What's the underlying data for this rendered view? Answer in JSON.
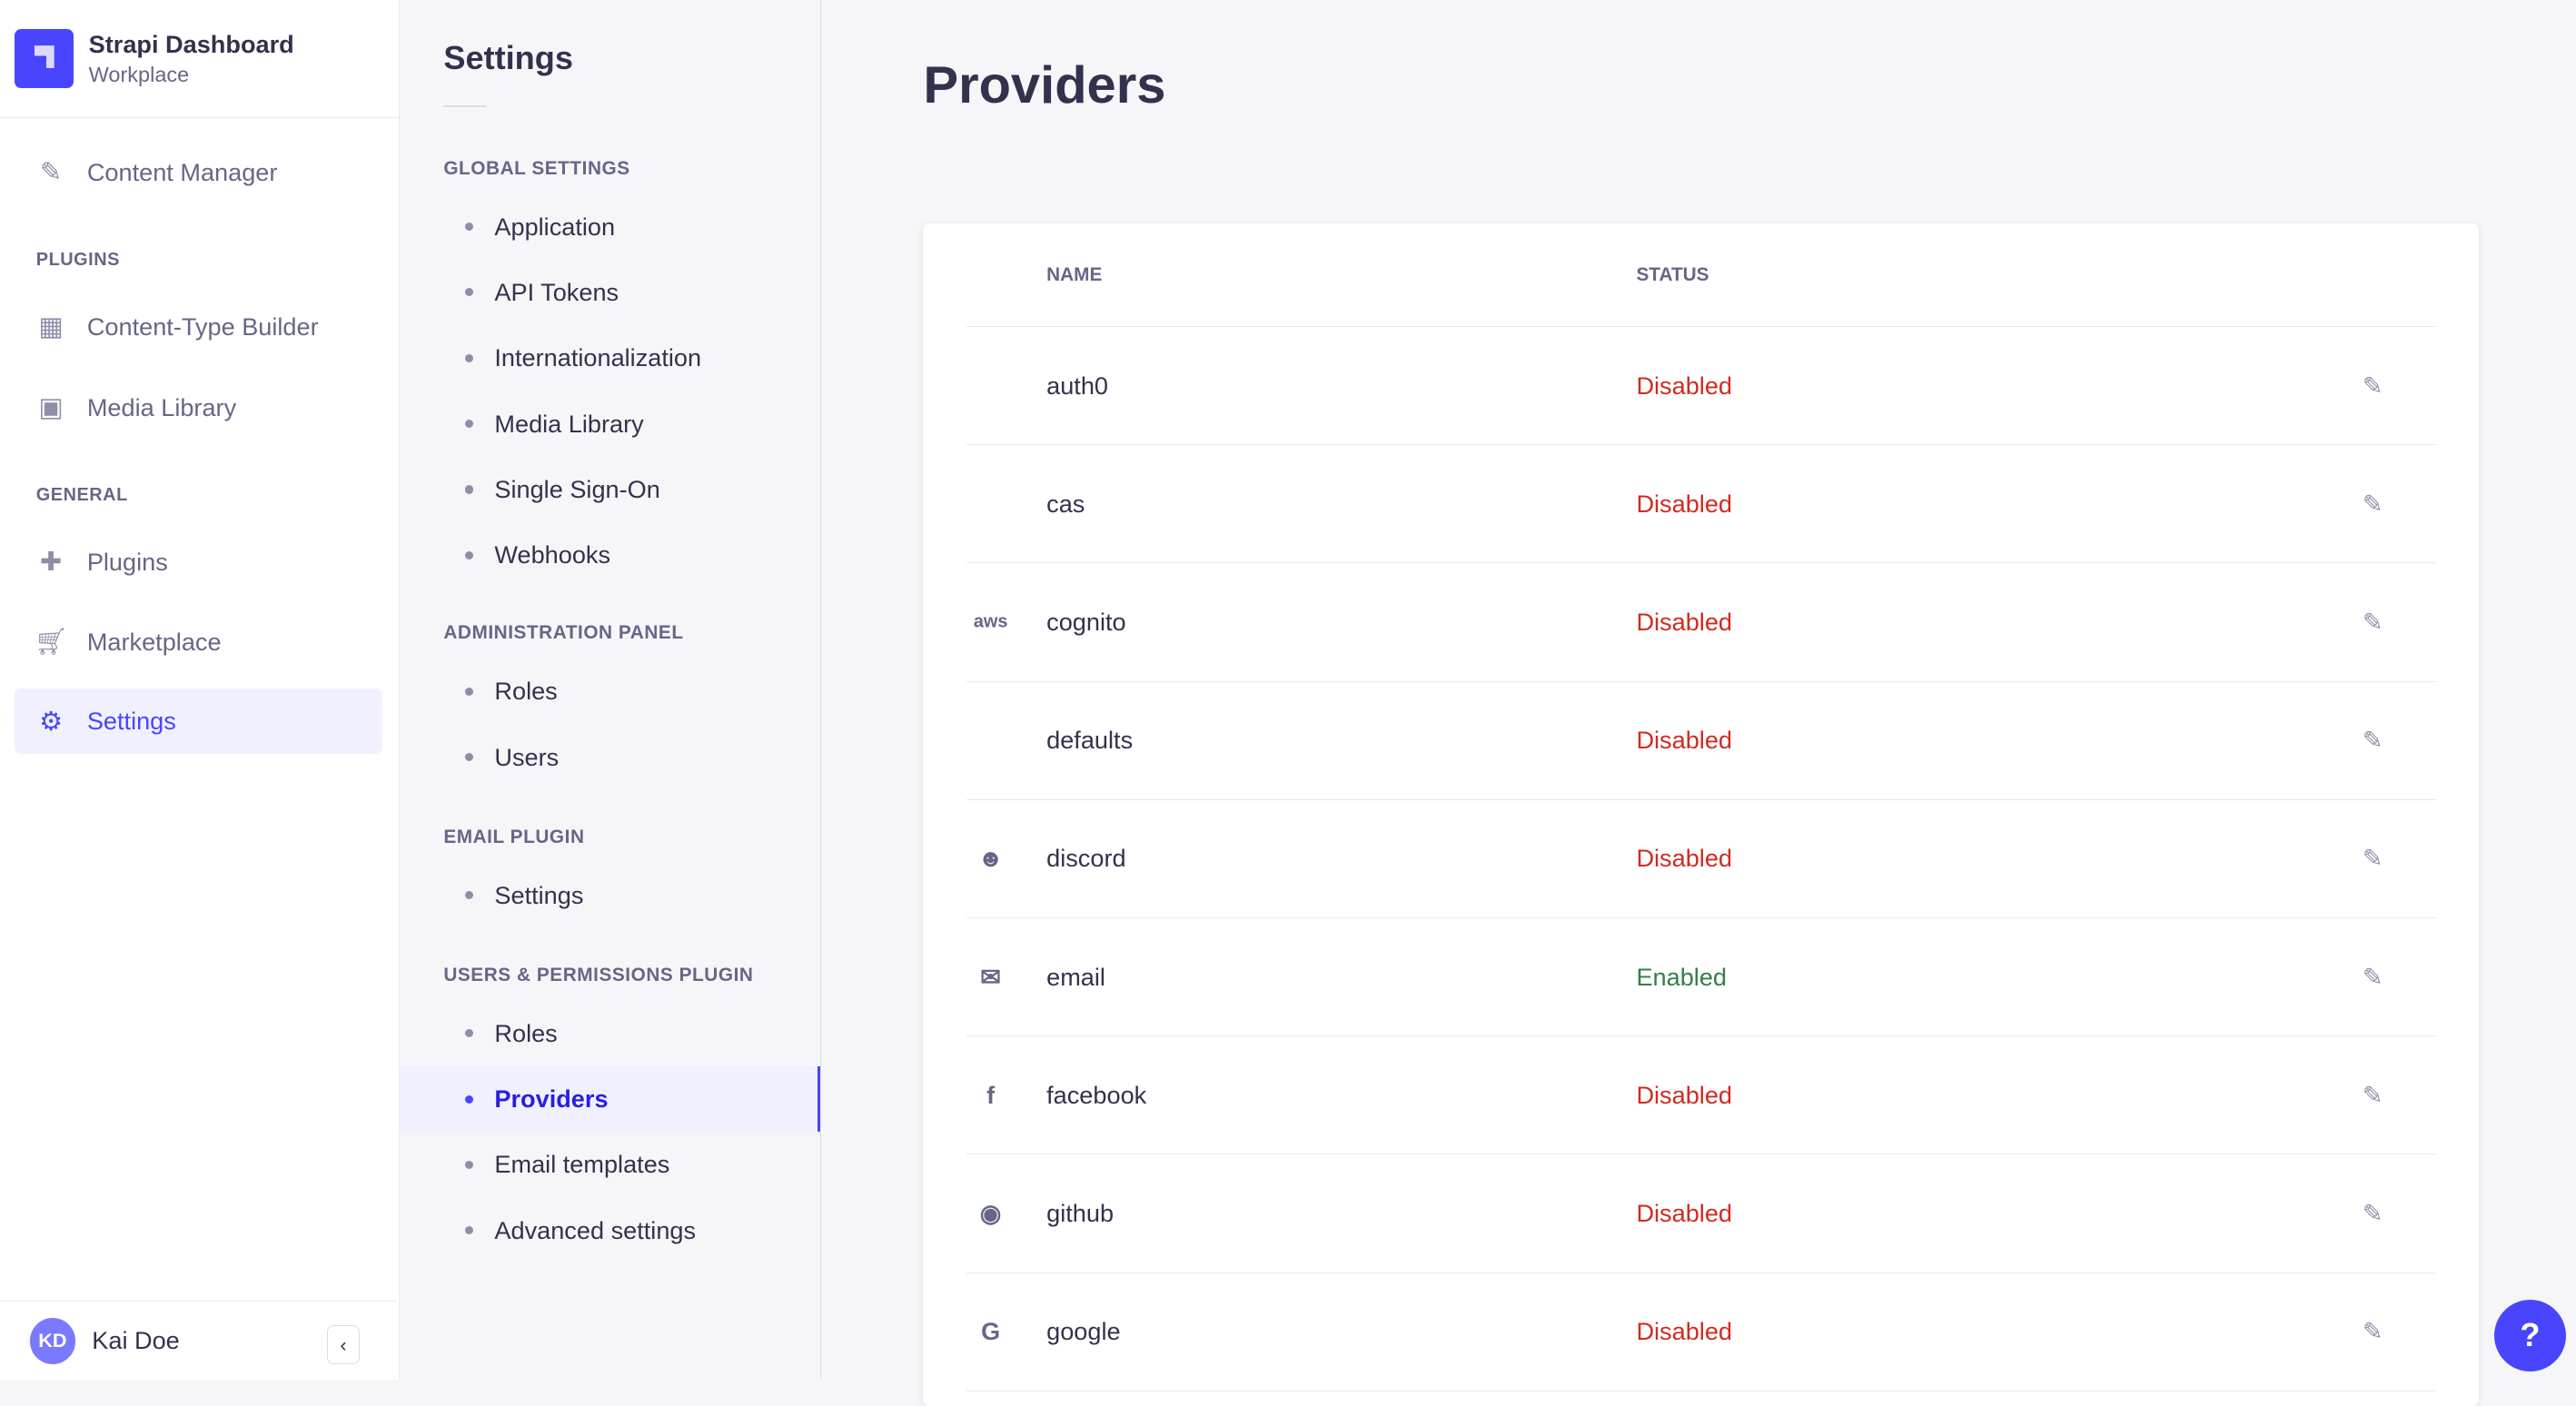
{
  "brand": {
    "title": "Strapi Dashboard",
    "subtitle": "Workplace"
  },
  "nav": {
    "content_manager": "Content Manager",
    "plugins_label": "PLUGINS",
    "ctb": "Content-Type Builder",
    "media": "Media Library",
    "general_label": "GENERAL",
    "plugins": "Plugins",
    "marketplace": "Marketplace",
    "settings": "Settings"
  },
  "user": {
    "initials": "KD",
    "name": "Kai Doe"
  },
  "settings": {
    "title": "Settings",
    "sections": [
      {
        "label": "GLOBAL SETTINGS",
        "items": [
          "Application",
          "API Tokens",
          "Internationalization",
          "Media Library",
          "Single Sign-On",
          "Webhooks"
        ]
      },
      {
        "label": "ADMINISTRATION PANEL",
        "items": [
          "Roles",
          "Users"
        ]
      },
      {
        "label": "EMAIL PLUGIN",
        "items": [
          "Settings"
        ]
      },
      {
        "label": "USERS & PERMISSIONS PLUGIN",
        "items": [
          "Roles",
          "Providers",
          "Email templates",
          "Advanced settings"
        ]
      }
    ],
    "active": "Providers"
  },
  "page": {
    "title": "Providers",
    "col_name": "NAME",
    "col_status": "STATUS"
  },
  "colors": {
    "accent": "#4945ff",
    "disabled": "#d02b20",
    "enabled": "#328048"
  },
  "providers": [
    {
      "name": "auth0",
      "status": "Disabled",
      "icon": ""
    },
    {
      "name": "cas",
      "status": "Disabled",
      "icon": ""
    },
    {
      "name": "cognito",
      "status": "Disabled",
      "icon": "aws-icon"
    },
    {
      "name": "defaults",
      "status": "Disabled",
      "icon": ""
    },
    {
      "name": "discord",
      "status": "Disabled",
      "icon": "discord-icon"
    },
    {
      "name": "email",
      "status": "Enabled",
      "icon": "envelope-icon"
    },
    {
      "name": "facebook",
      "status": "Disabled",
      "icon": "facebook-icon"
    },
    {
      "name": "github",
      "status": "Disabled",
      "icon": "github-icon"
    },
    {
      "name": "google",
      "status": "Disabled",
      "icon": "google-icon"
    }
  ],
  "help": "?"
}
